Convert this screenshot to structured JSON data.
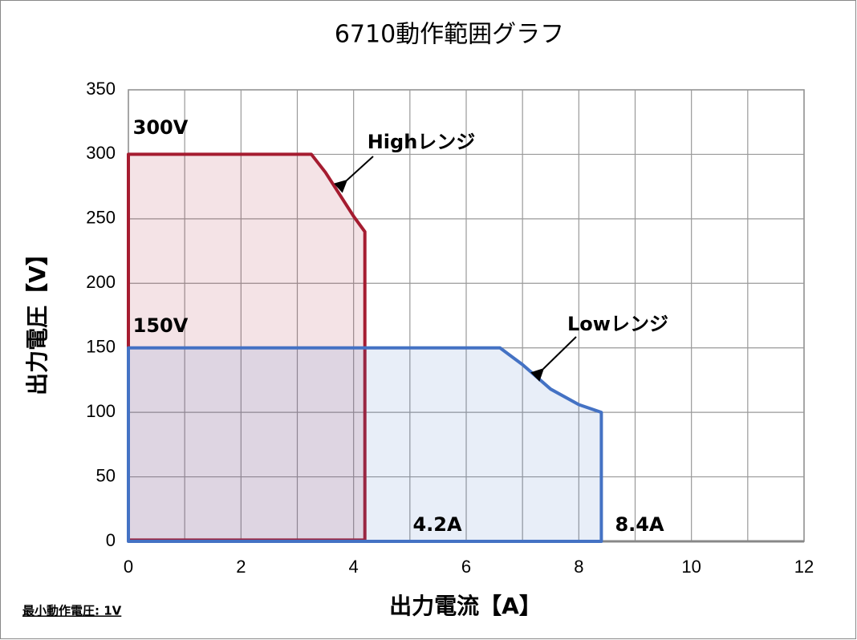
{
  "chart_data": {
    "type": "area",
    "title": "6710動作範囲グラフ",
    "x_label": "出力電流【A】",
    "y_label": "出力電圧【V】",
    "xlim": [
      0,
      12
    ],
    "xticks": [
      0,
      2,
      4,
      6,
      8,
      10,
      12
    ],
    "xgrid": [
      1,
      2,
      3,
      4,
      5,
      6,
      7,
      8,
      9,
      10,
      11
    ],
    "ylim": [
      0,
      350
    ],
    "yticks": [
      0,
      50,
      100,
      150,
      200,
      250,
      300,
      350
    ],
    "grid": true,
    "series": [
      {
        "name": "Highレンジ",
        "color": "#a51c30",
        "x": [
          0,
          3.25,
          3.5,
          4,
          4.2,
          4.2,
          0
        ],
        "values": [
          300,
          300,
          286,
          252,
          240,
          1,
          1
        ]
      },
      {
        "name": "Lowレンジ",
        "color": "#4472c4",
        "x": [
          0,
          6.6,
          7,
          7.5,
          8,
          8.4,
          8.4,
          0
        ],
        "values": [
          150,
          150,
          137,
          118,
          106,
          100,
          0,
          0
        ]
      }
    ],
    "annotations": [
      "300V",
      "150V",
      "4.2A",
      "8.4A"
    ],
    "footnote": "最小動作電圧: 1V"
  }
}
